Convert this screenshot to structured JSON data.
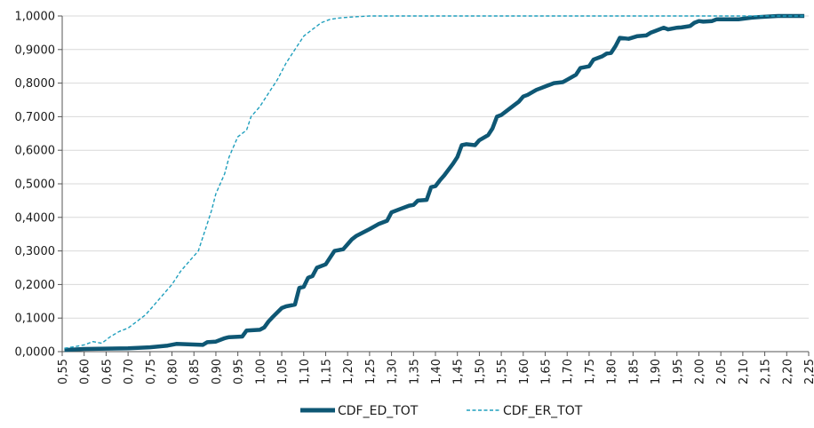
{
  "chart_data": {
    "type": "line",
    "title": "",
    "xlabel": "",
    "ylabel": "",
    "xlim": [
      0.55,
      2.25
    ],
    "ylim": [
      0,
      1
    ],
    "x_ticks": [
      "0,55",
      "0,60",
      "0,65",
      "0,70",
      "0,75",
      "0,80",
      "0,85",
      "0,90",
      "0,95",
      "1,00",
      "1,05",
      "1,10",
      "1,15",
      "1,20",
      "1,25",
      "1,30",
      "1,35",
      "1,40",
      "1,45",
      "1,50",
      "1,55",
      "1,60",
      "1,65",
      "1,70",
      "1,75",
      "1,80",
      "1,85",
      "1,90",
      "1,95",
      "2,00",
      "2,05",
      "2,10",
      "2,15",
      "2,20",
      "2,25"
    ],
    "y_ticks": [
      "0,0000",
      "0,1000",
      "0,2000",
      "0,3000",
      "0,4000",
      "0,5000",
      "0,6000",
      "0,7000",
      "0,8000",
      "0,9000",
      "1,0000"
    ],
    "grid": "horizontal",
    "legend_position": "bottom",
    "series": [
      {
        "name": "CDF_ED_TOT",
        "color": "#0e5774",
        "style": "solid-thick",
        "x": [
          0.555,
          0.6,
          0.65,
          0.7,
          0.75,
          0.79,
          0.81,
          0.87,
          0.88,
          0.9,
          0.92,
          0.93,
          0.96,
          0.97,
          1.0,
          1.01,
          1.02,
          1.03,
          1.05,
          1.06,
          1.08,
          1.09,
          1.1,
          1.11,
          1.12,
          1.13,
          1.15,
          1.16,
          1.17,
          1.19,
          1.2,
          1.21,
          1.22,
          1.25,
          1.27,
          1.29,
          1.3,
          1.32,
          1.34,
          1.35,
          1.36,
          1.38,
          1.39,
          1.4,
          1.41,
          1.42,
          1.44,
          1.45,
          1.46,
          1.47,
          1.49,
          1.5,
          1.52,
          1.53,
          1.54,
          1.55,
          1.56,
          1.58,
          1.59,
          1.6,
          1.61,
          1.63,
          1.64,
          1.65,
          1.67,
          1.69,
          1.7,
          1.72,
          1.73,
          1.75,
          1.76,
          1.78,
          1.79,
          1.8,
          1.81,
          1.82,
          1.84,
          1.86,
          1.88,
          1.89,
          1.9,
          1.92,
          1.93,
          1.95,
          1.96,
          1.97,
          1.98,
          1.99,
          2.0,
          2.01,
          2.03,
          2.04,
          2.05,
          2.08,
          2.09,
          2.12,
          2.14,
          2.18,
          2.19,
          2.23,
          2.24
        ],
        "y": [
          0.005,
          0.008,
          0.009,
          0.01,
          0.013,
          0.018,
          0.023,
          0.02,
          0.028,
          0.03,
          0.04,
          0.043,
          0.045,
          0.063,
          0.065,
          0.072,
          0.09,
          0.104,
          0.13,
          0.135,
          0.14,
          0.19,
          0.193,
          0.22,
          0.225,
          0.25,
          0.26,
          0.28,
          0.3,
          0.305,
          0.32,
          0.335,
          0.345,
          0.365,
          0.38,
          0.39,
          0.415,
          0.425,
          0.435,
          0.437,
          0.45,
          0.452,
          0.49,
          0.493,
          0.51,
          0.525,
          0.56,
          0.58,
          0.615,
          0.618,
          0.615,
          0.63,
          0.645,
          0.665,
          0.7,
          0.705,
          0.715,
          0.735,
          0.745,
          0.76,
          0.765,
          0.78,
          0.785,
          0.79,
          0.8,
          0.803,
          0.81,
          0.825,
          0.845,
          0.85,
          0.87,
          0.88,
          0.888,
          0.89,
          0.91,
          0.935,
          0.932,
          0.94,
          0.942,
          0.95,
          0.955,
          0.965,
          0.96,
          0.965,
          0.966,
          0.968,
          0.97,
          0.98,
          0.985,
          0.983,
          0.985,
          0.99,
          0.99,
          0.99,
          0.99,
          0.995,
          0.997,
          1.0,
          1.0,
          1.0,
          1.0
        ]
      },
      {
        "name": "CDF_ER_TOT",
        "color": "#1f9fbd",
        "style": "dashed-thin",
        "x": [
          0.555,
          0.58,
          0.6,
          0.62,
          0.64,
          0.66,
          0.68,
          0.7,
          0.72,
          0.74,
          0.76,
          0.78,
          0.8,
          0.82,
          0.84,
          0.86,
          0.87,
          0.88,
          0.89,
          0.9,
          0.92,
          0.93,
          0.94,
          0.95,
          0.97,
          0.98,
          1.0,
          1.02,
          1.04,
          1.06,
          1.08,
          1.1,
          1.12,
          1.14,
          1.16,
          1.18,
          1.2,
          1.22,
          1.25,
          1.3,
          1.4,
          1.6,
          1.8,
          2.0,
          2.24
        ],
        "y": [
          0.01,
          0.015,
          0.02,
          0.03,
          0.025,
          0.045,
          0.06,
          0.07,
          0.09,
          0.11,
          0.14,
          0.17,
          0.2,
          0.24,
          0.27,
          0.3,
          0.34,
          0.38,
          0.42,
          0.47,
          0.53,
          0.58,
          0.61,
          0.64,
          0.66,
          0.7,
          0.73,
          0.77,
          0.81,
          0.86,
          0.9,
          0.94,
          0.96,
          0.98,
          0.99,
          0.994,
          0.996,
          0.998,
          1.0,
          1.0,
          1.0,
          1.0,
          1.0,
          1.0,
          1.0
        ]
      }
    ]
  }
}
